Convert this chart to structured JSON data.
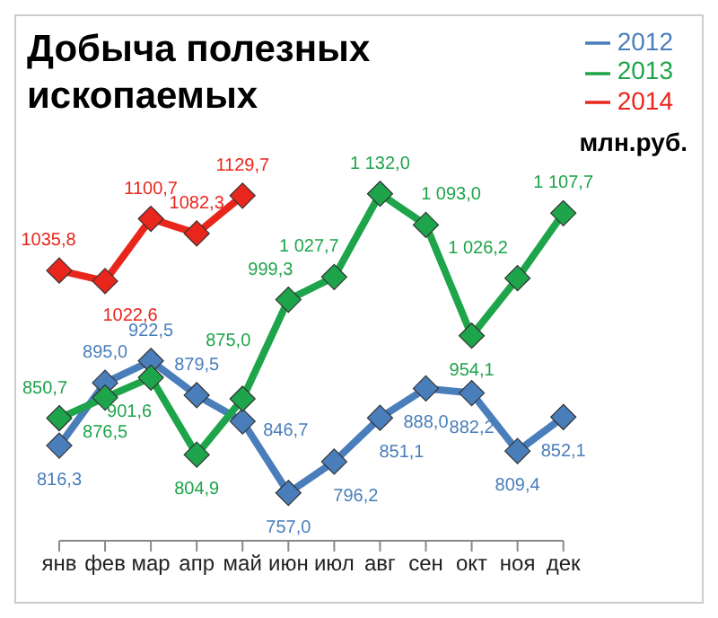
{
  "chart_data": {
    "type": "line",
    "title": "Добыча полезных ископаемых",
    "annotations": [
      "млн.руб."
    ],
    "categories": [
      "янв",
      "фев",
      "мар",
      "апр",
      "май",
      "июн",
      "июл",
      "авг",
      "сен",
      "окт",
      "ноя",
      "дек"
    ],
    "series": [
      {
        "name": "2012",
        "color": "#4a7ebb",
        "values": [
          816.3,
          895.0,
          922.5,
          879.5,
          846.7,
          757.0,
          796.2,
          851.1,
          888.0,
          882.2,
          809.4,
          852.1
        ],
        "value_labels": [
          "816,3",
          "895,0",
          "922,5",
          "879,5",
          "846,7",
          "757,0",
          "796,2",
          "851,1",
          "888,0",
          "882,2",
          "809,4",
          "852,1"
        ]
      },
      {
        "name": "2013",
        "color": "#1ea44a",
        "values": [
          850.7,
          876.5,
          901.6,
          804.9,
          875.0,
          999.3,
          1027.7,
          1132.0,
          1093.0,
          954.1,
          1026.2,
          1107.7
        ],
        "value_labels": [
          "850,7",
          "876,5",
          "901,6",
          "804,9",
          "875,0",
          "999,3",
          "1 027,7",
          "1 132,0",
          "1 093,0",
          "954,1",
          "1 026,2",
          "1 107,7"
        ]
      },
      {
        "name": "2014",
        "color": "#e8261c",
        "values": [
          1035.8,
          1022.6,
          1100.7,
          1082.3,
          1129.7,
          null,
          null,
          null,
          null,
          null,
          null,
          null
        ],
        "value_labels": [
          "1035,8",
          "1022,6",
          "1100,7",
          "1082,3",
          "1129,7",
          null,
          null,
          null,
          null,
          null,
          null,
          null
        ]
      }
    ],
    "marker": "diamond",
    "grid": false,
    "legend": "top right",
    "tick_labels": "x"
  }
}
